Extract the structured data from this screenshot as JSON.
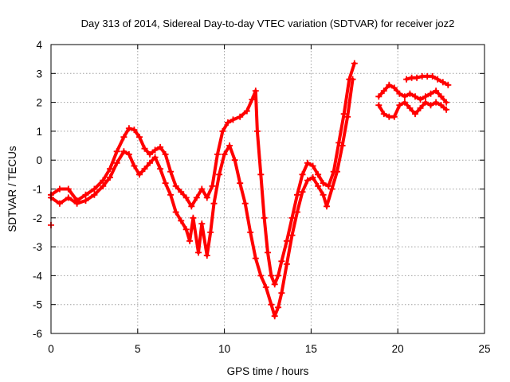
{
  "chart_data": {
    "type": "scatter",
    "title": "Day 313 of 2014, Sidereal Day-to-day VTEC variation (SDTVAR) for receiver joz2",
    "xlabel": "GPS time / hours",
    "ylabel": "SDTVAR / TECUs",
    "xlim": [
      0,
      25
    ],
    "ylim": [
      -6,
      4
    ],
    "xticks": [
      0,
      5,
      10,
      15,
      20,
      25
    ],
    "yticks": [
      -6,
      -5,
      -4,
      -3,
      -2,
      -1,
      0,
      1,
      2,
      3,
      4
    ],
    "grid": true,
    "colors": {
      "series": "#ff0000",
      "grid": "#a0a0a0",
      "axes": "#000000"
    },
    "series": [
      {
        "x": [
          0.0,
          0.5,
          1.0,
          1.5,
          2.0,
          2.5,
          3.0,
          3.4,
          3.8,
          4.2,
          4.5,
          4.8,
          5.1,
          5.4,
          5.7,
          6.0,
          6.3,
          6.6,
          6.9,
          7.2,
          7.5,
          7.8,
          8.1,
          8.4,
          8.7,
          9.0,
          9.3,
          9.6,
          9.9,
          10.2,
          10.5,
          10.9,
          11.3,
          11.6,
          11.8,
          11.9,
          12.1,
          12.3,
          12.5,
          12.7,
          12.9,
          13.1,
          13.3,
          13.6,
          13.9,
          14.2,
          14.5,
          14.8,
          15.1,
          15.4,
          15.7,
          16.0,
          16.3,
          16.6,
          16.9,
          17.2,
          17.5
        ],
        "y": [
          -1.2,
          -1.0,
          -1.0,
          -1.4,
          -1.2,
          -1.0,
          -0.7,
          -0.3,
          0.3,
          0.8,
          1.1,
          1.05,
          0.8,
          0.4,
          0.2,
          0.35,
          0.45,
          0.2,
          -0.4,
          -0.9,
          -1.1,
          -1.3,
          -1.6,
          -1.3,
          -1.0,
          -1.3,
          -0.9,
          0.2,
          1.0,
          1.3,
          1.4,
          1.5,
          1.7,
          2.1,
          2.4,
          1.0,
          -0.5,
          -2.0,
          -3.2,
          -4.0,
          -4.3,
          -4.0,
          -3.5,
          -2.8,
          -2.0,
          -1.2,
          -0.5,
          -0.1,
          -0.2,
          -0.5,
          -0.8,
          -0.9,
          -0.4,
          0.6,
          1.6,
          2.8,
          3.35
        ]
      },
      {
        "x": [
          0.0,
          0.5,
          1.0,
          1.5,
          2.0,
          2.5,
          3.0,
          3.4,
          3.8,
          4.2,
          4.5,
          4.8,
          5.1,
          5.4,
          5.7,
          6.0,
          6.3,
          6.6,
          6.9,
          7.2,
          7.5,
          7.8,
          8.0,
          8.2,
          8.5,
          8.7,
          9.0,
          9.2,
          9.4,
          9.7,
          10.0,
          10.3,
          10.6,
          10.9,
          11.2,
          11.5,
          11.8,
          12.1,
          12.4,
          12.7,
          12.9,
          13.1,
          13.3,
          13.6,
          13.9,
          14.2,
          14.5,
          14.8,
          15.1,
          15.4,
          15.7,
          15.9,
          16.2,
          16.5,
          16.8,
          17.1,
          17.4
        ],
        "y": [
          -1.3,
          -1.5,
          -1.3,
          -1.5,
          -1.4,
          -1.2,
          -0.9,
          -0.6,
          -0.1,
          0.3,
          0.2,
          -0.2,
          -0.5,
          -0.3,
          -0.1,
          0.1,
          -0.3,
          -0.8,
          -1.2,
          -1.8,
          -2.1,
          -2.4,
          -2.8,
          -2.0,
          -3.2,
          -2.2,
          -3.3,
          -2.5,
          -1.5,
          -0.5,
          0.2,
          0.5,
          0.0,
          -0.8,
          -1.5,
          -2.5,
          -3.4,
          -4.0,
          -4.4,
          -5.0,
          -5.4,
          -5.1,
          -4.6,
          -3.6,
          -2.6,
          -1.8,
          -1.1,
          -0.7,
          -0.6,
          -0.9,
          -1.2,
          -1.6,
          -1.0,
          -0.4,
          0.5,
          1.5,
          2.8
        ]
      },
      {
        "x": [
          18.9,
          19.2,
          19.5,
          19.8,
          20.1,
          20.4,
          20.7,
          21.0,
          21.3,
          21.6,
          21.9,
          22.2,
          22.5,
          22.8
        ],
        "y": [
          2.2,
          2.4,
          2.6,
          2.5,
          2.3,
          2.2,
          2.3,
          2.2,
          2.1,
          2.2,
          2.3,
          2.4,
          2.2,
          2.0
        ]
      },
      {
        "x": [
          18.9,
          19.2,
          19.5,
          19.8,
          20.1,
          20.4,
          20.7,
          21.0,
          21.3,
          21.6,
          21.9,
          22.2,
          22.5,
          22.8
        ],
        "y": [
          1.9,
          1.6,
          1.5,
          1.5,
          1.9,
          2.0,
          1.8,
          1.6,
          1.8,
          2.0,
          1.9,
          2.0,
          1.9,
          1.75
        ]
      },
      {
        "x": [
          20.5,
          20.8,
          21.1,
          21.4,
          21.7,
          22.0,
          22.3,
          22.6,
          22.9
        ],
        "y": [
          2.8,
          2.85,
          2.85,
          2.9,
          2.9,
          2.9,
          2.8,
          2.7,
          2.6
        ]
      },
      {
        "x": [
          0.0
        ],
        "y": [
          -2.25
        ]
      }
    ]
  }
}
